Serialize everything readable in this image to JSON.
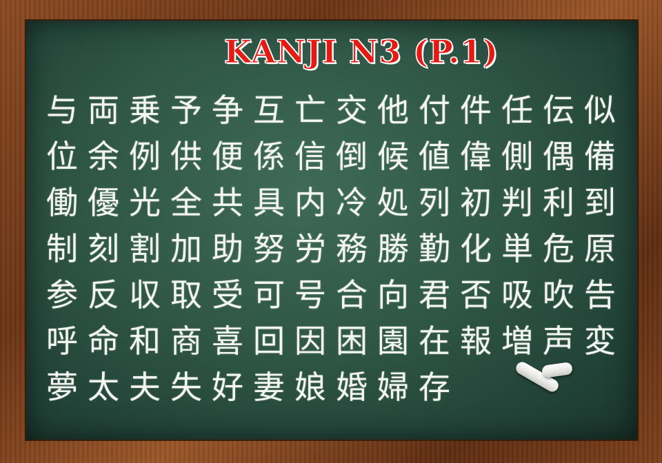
{
  "title": "KANJI N3 (P.1)",
  "kanji": [
    "与",
    "両",
    "乗",
    "予",
    "争",
    "互",
    "亡",
    "交",
    "他",
    "付",
    "件",
    "任",
    "伝",
    "似",
    "位",
    "余",
    "例",
    "供",
    "便",
    "係",
    "信",
    "倒",
    "候",
    "値",
    "偉",
    "側",
    "偶",
    "備",
    "働",
    "優",
    "光",
    "全",
    "共",
    "具",
    "内",
    "冷",
    "処",
    "列",
    "初",
    "判",
    "利",
    "到",
    "制",
    "刻",
    "割",
    "加",
    "助",
    "努",
    "労",
    "務",
    "勝",
    "勤",
    "化",
    "単",
    "危",
    "原",
    "参",
    "反",
    "収",
    "取",
    "受",
    "可",
    "号",
    "合",
    "向",
    "君",
    "否",
    "吸",
    "吹",
    "告",
    "呼",
    "命",
    "和",
    "商",
    "喜",
    "回",
    "因",
    "困",
    "園",
    "在",
    "報",
    "増",
    "声",
    "変",
    "夢",
    "太",
    "夫",
    "失",
    "好",
    "妻",
    "娘",
    "婚",
    "婦",
    "存"
  ]
}
